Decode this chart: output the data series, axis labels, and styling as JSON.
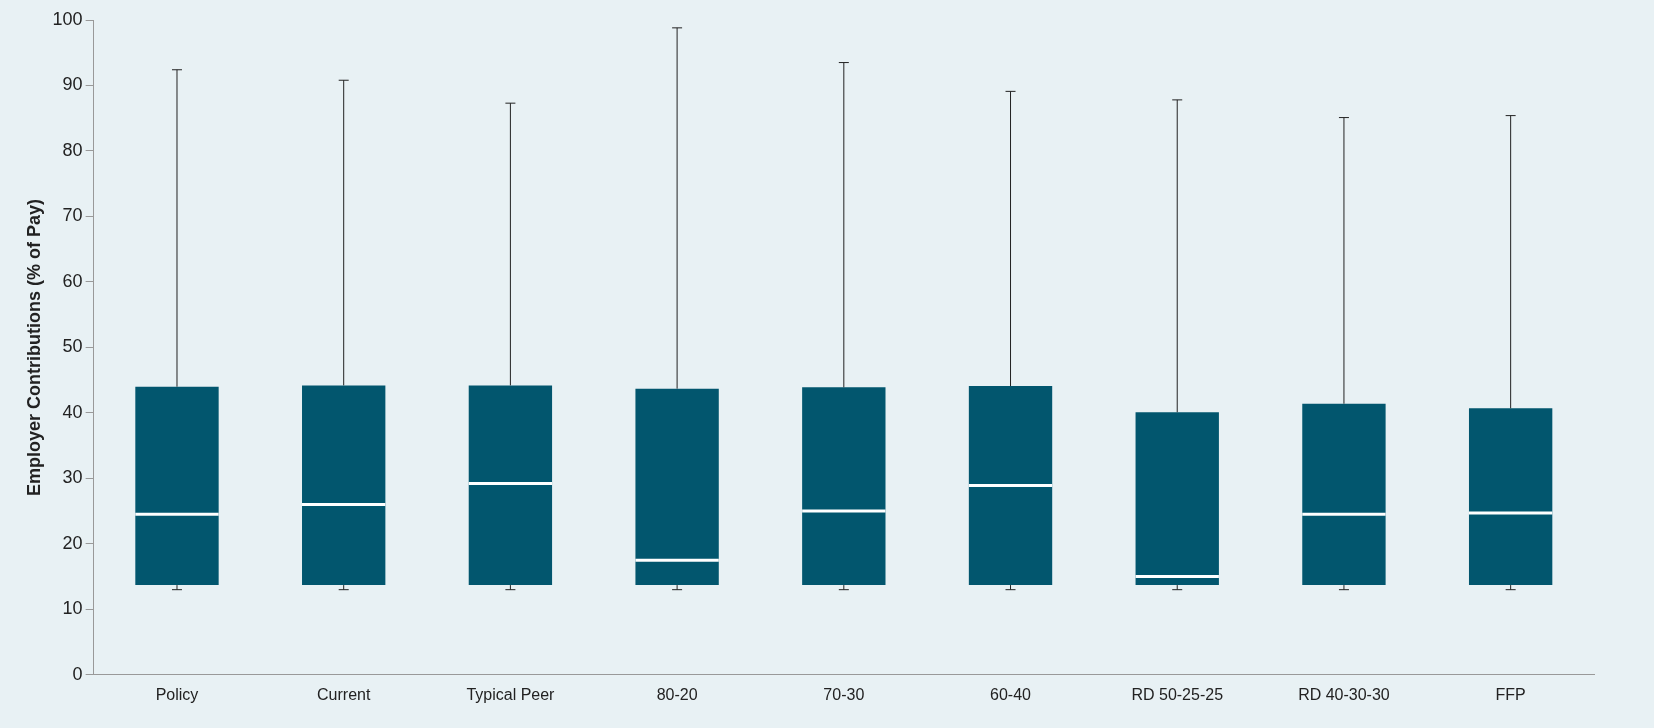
{
  "chart_data": {
    "type": "box",
    "ylabel": "Employer Contributions (% of Pay)",
    "categories": [
      "Policy",
      "Current",
      "Typical Peer",
      "80-20",
      "70-30",
      "60-40",
      "RD 50-25-25",
      "RD 40-30-30",
      "FFP"
    ],
    "color": "#02566e",
    "boxes": [
      {
        "low": 13,
        "q1": 13.7,
        "median": 24.5,
        "q3": 44,
        "high": 92.4
      },
      {
        "low": 13,
        "q1": 13.7,
        "median": 26,
        "q3": 44.2,
        "high": 90.8
      },
      {
        "low": 13,
        "q1": 13.7,
        "median": 29.2,
        "q3": 44.2,
        "high": 87.3
      },
      {
        "low": 13,
        "q1": 13.7,
        "median": 17.5,
        "q3": 43.7,
        "high": 98.8
      },
      {
        "low": 13,
        "q1": 13.7,
        "median": 25,
        "q3": 43.9,
        "high": 93.5
      },
      {
        "low": 13,
        "q1": 13.7,
        "median": 28.9,
        "q3": 44.1,
        "high": 89.1
      },
      {
        "low": 13,
        "q1": 13.7,
        "median": 15,
        "q3": 40.1,
        "high": 87.8
      },
      {
        "low": 13,
        "q1": 13.7,
        "median": 24.5,
        "q3": 41.4,
        "high": 85.1
      },
      {
        "low": 13,
        "q1": 13.7,
        "median": 24.7,
        "q3": 40.7,
        "high": 85.4
      }
    ],
    "ylim": [
      0,
      100
    ],
    "yticks": [
      0,
      10,
      20,
      30,
      40,
      50,
      60,
      70,
      80,
      90,
      100
    ]
  }
}
